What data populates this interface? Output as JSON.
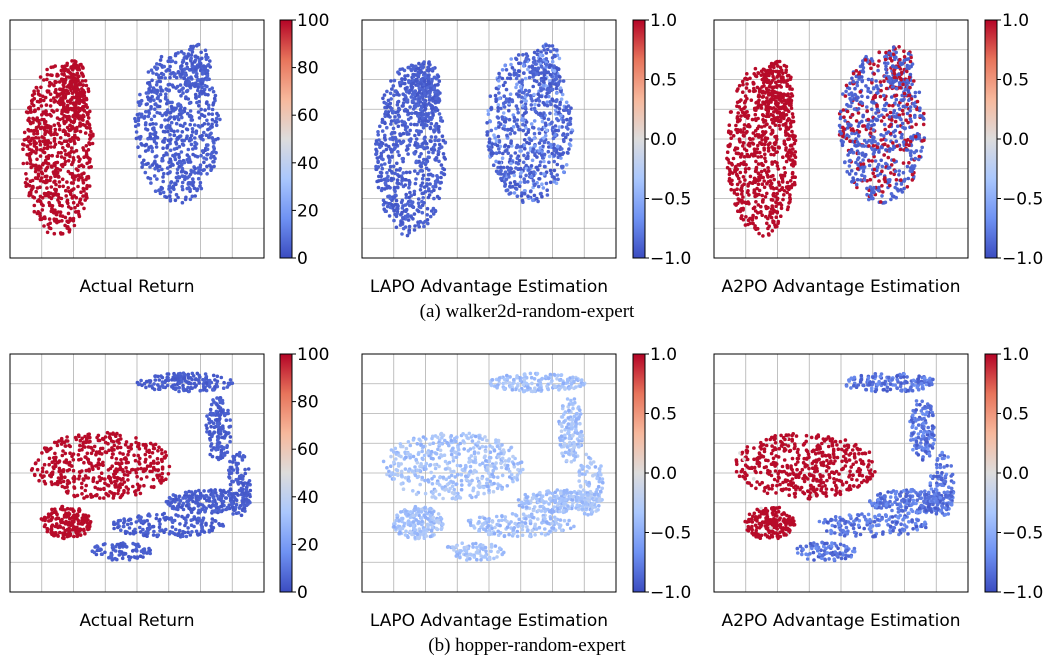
{
  "figure": {
    "captions": [
      "(a) walker2d-random-expert",
      "(b) hopper-random-expert"
    ]
  },
  "colormap": {
    "name": "coolwarm",
    "stops": [
      "#3b4cc0",
      "#6f92f3",
      "#aac7fd",
      "#dddcdc",
      "#f7b89c",
      "#e7745b",
      "#b40426"
    ]
  },
  "chart_data": [
    {
      "type": "scatter",
      "row": 0,
      "col": 0,
      "xlabel": "Actual Return",
      "colorbar": {
        "vmin": 0,
        "vmax": 100,
        "ticks": [
          "0",
          "20",
          "40",
          "60",
          "80",
          "100"
        ]
      },
      "point_color": "return",
      "blobs": "walker",
      "approx_points": 1600
    },
    {
      "type": "scatter",
      "row": 0,
      "col": 1,
      "xlabel": "LAPO Advantage Estimation",
      "colorbar": {
        "vmin": -1.0,
        "vmax": 1.0,
        "ticks": [
          "−1.0",
          "−0.5",
          "0.0",
          "0.5",
          "1.0"
        ]
      },
      "point_color": "mostly -1.0 with scattered values near -0.5 in right cluster",
      "blobs": "walker",
      "approx_points": 1600
    },
    {
      "type": "scatter",
      "row": 0,
      "col": 2,
      "xlabel": "A2PO Advantage Estimation",
      "colorbar": {
        "vmin": -1.0,
        "vmax": 1.0,
        "ticks": [
          "−1.0",
          "−0.5",
          "0.0",
          "0.5",
          "1.0"
        ]
      },
      "point_color": "left cluster +1.0, right cluster mixed -1.0 and +1.0",
      "blobs": "walker",
      "approx_points": 1600
    },
    {
      "type": "scatter",
      "row": 1,
      "col": 0,
      "xlabel": "Actual Return",
      "colorbar": {
        "vmin": 0,
        "vmax": 100,
        "ticks": [
          "0",
          "20",
          "40",
          "60",
          "80",
          "100"
        ]
      },
      "point_color": "return",
      "blobs": "hopper",
      "approx_points": 1500
    },
    {
      "type": "scatter",
      "row": 1,
      "col": 1,
      "xlabel": "LAPO Advantage Estimation",
      "colorbar": {
        "vmin": -1.0,
        "vmax": 1.0,
        "ticks": [
          "−1.0",
          "−0.5",
          "0.0",
          "0.5",
          "1.0"
        ]
      },
      "point_color": "uniform approx -0.35 to -0.15",
      "blobs": "hopper",
      "approx_points": 1500
    },
    {
      "type": "scatter",
      "row": 1,
      "col": 2,
      "xlabel": "A2PO Advantage Estimation",
      "colorbar": {
        "vmin": -1.0,
        "vmax": 1.0,
        "ticks": [
          "−1.0",
          "−0.5",
          "0.0",
          "0.5",
          "1.0"
        ]
      },
      "point_color": "left cluster +1.0, right arcs -1.0 to -0.6",
      "blobs": "hopper",
      "approx_points": 1500
    }
  ]
}
